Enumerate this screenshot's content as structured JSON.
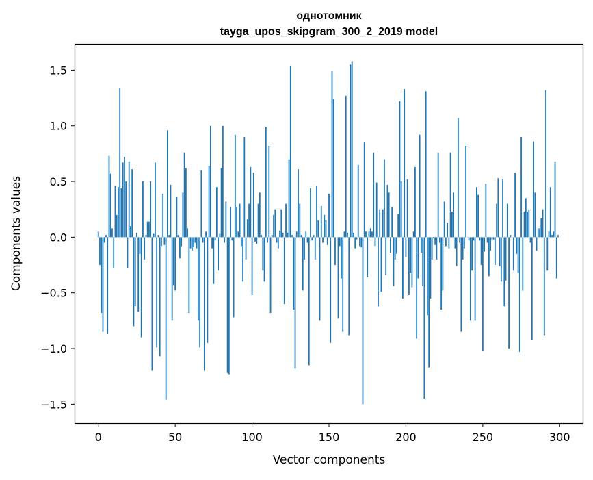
{
  "chart_data": {
    "type": "bar",
    "title_line1": "однотомник",
    "title_line2": "tayga_upos_skipgram_300_2_2019 model",
    "xlabel": "Vector components",
    "ylabel": "Components values",
    "xlim": [
      -15,
      315
    ],
    "ylim": [
      -1.67,
      1.73
    ],
    "xticks": [
      0,
      50,
      100,
      150,
      200,
      250,
      300
    ],
    "xtick_labels": [
      "0",
      "50",
      "100",
      "150",
      "200",
      "250",
      "300"
    ],
    "yticks": [
      -1.5,
      -1.0,
      -0.5,
      0.0,
      0.5,
      1.0,
      1.5
    ],
    "ytick_labels": [
      "−1.5",
      "−1.0",
      "−0.5",
      "0.0",
      "0.5",
      "1.0",
      "1.5"
    ],
    "bar_color": "#1f77b4",
    "values": [
      0.05,
      -0.25,
      -0.68,
      -0.85,
      -0.05,
      0.02,
      -0.87,
      0.73,
      0.57,
      0.08,
      -0.28,
      0.46,
      0.2,
      0.45,
      1.34,
      0.44,
      0.67,
      0.72,
      0.5,
      -0.28,
      0.68,
      0.1,
      0.61,
      -0.8,
      -0.62,
      0.04,
      -0.67,
      -0.15,
      -0.9,
      0.5,
      -0.2,
      0.02,
      0.14,
      0.14,
      0.5,
      -1.2,
      0.03,
      0.67,
      -0.99,
      0.02,
      -1.07,
      -0.08,
      0.39,
      -0.07,
      -1.46,
      0.96,
      0.02,
      0.47,
      -0.75,
      -0.43,
      -0.48,
      0.36,
      0.02,
      -0.19,
      -0.08,
      0.4,
      0.76,
      0.62,
      0.08,
      -0.68,
      -0.1,
      -0.12,
      -0.09,
      -0.05,
      -0.1,
      -0.75,
      -0.99,
      0.6,
      -0.05,
      -1.2,
      0.05,
      -0.95,
      0.64,
      1.0,
      -0.1,
      -0.42,
      -0.03,
      0.45,
      -0.3,
      0.03,
      0.62,
      1.0,
      -0.05,
      0.32,
      -1.22,
      -1.23,
      0.27,
      -0.03,
      -0.72,
      0.92,
      0.27,
      0.05,
      0.3,
      -0.08,
      -0.4,
      0.9,
      -0.2,
      0.16,
      0.3,
      0.63,
      -0.52,
      0.58,
      -0.04,
      -0.06,
      0.3,
      0.4,
      0.02,
      -0.3,
      -0.4,
      0.99,
      -0.05,
      0.82,
      -0.68,
      0.02,
      0.2,
      0.25,
      -0.05,
      -0.1,
      0.06,
      0.25,
      0.04,
      -0.6,
      0.3,
      0.04,
      0.7,
      1.54,
      0.02,
      -0.65,
      -1.18,
      0.05,
      0.61,
      0.3,
      0.02,
      -0.48,
      -0.2,
      0.05,
      -0.05,
      -1.15,
      0.44,
      -0.03,
      0.02,
      -0.2,
      0.46,
      0.15,
      -0.75,
      0.28,
      -0.05,
      0.2,
      0.15,
      -0.07,
      0.39,
      -0.95,
      1.49,
      1.24,
      -0.25,
      0.0,
      -0.73,
      -0.08,
      -0.37,
      -0.85,
      0.05,
      1.27,
      0.04,
      -0.88,
      1.55,
      1.58,
      0.04,
      -0.1,
      -0.02,
      0.65,
      -0.08,
      -0.09,
      -1.5,
      0.85,
      0.05,
      -0.36,
      0.05,
      0.08,
      0.05,
      0.76,
      -0.08,
      0.49,
      -0.62,
      0.25,
      -0.49,
      0.25,
      0.7,
      -0.34,
      0.47,
      0.4,
      -0.14,
      0.27,
      -0.44,
      -0.2,
      -0.15,
      0.21,
      1.22,
      0.5,
      -0.55,
      1.33,
      -0.18,
      0.52,
      -0.52,
      -0.32,
      -0.45,
      0.05,
      0.63,
      -0.91,
      -0.37,
      0.92,
      -0.14,
      -0.44,
      -1.45,
      1.31,
      -0.7,
      -1.17,
      -0.55,
      -0.2,
      -0.01,
      -0.07,
      -0.2,
      0.76,
      -0.05,
      -0.65,
      -0.48,
      0.32,
      -0.08,
      0.13,
      -0.1,
      0.76,
      0.23,
      0.4,
      -0.1,
      -0.26,
      1.07,
      -0.05,
      -0.85,
      -0.2,
      -0.1,
      0.82,
      0.0,
      -0.03,
      -0.75,
      -0.3,
      -0.03,
      -0.75,
      0.45,
      0.38,
      -0.03,
      -0.25,
      -1.02,
      -0.13,
      0.48,
      -0.05,
      -0.35,
      -0.12,
      -0.02,
      -0.02,
      -0.25,
      0.3,
      0.53,
      -0.26,
      -0.4,
      0.52,
      -0.62,
      -0.39,
      0.3,
      -1.0,
      0.02,
      0.0,
      -0.3,
      0.58,
      -0.15,
      -0.32,
      -1.03,
      0.9,
      -0.48,
      0.23,
      0.35,
      0.23,
      0.25,
      -0.05,
      -0.92,
      0.86,
      0.4,
      -0.12,
      0.08,
      0.08,
      0.17,
      0.25,
      -0.88,
      1.32,
      -0.3,
      0.05,
      0.45,
      0.02,
      0.05,
      0.68,
      -0.37,
      0.02
    ]
  }
}
